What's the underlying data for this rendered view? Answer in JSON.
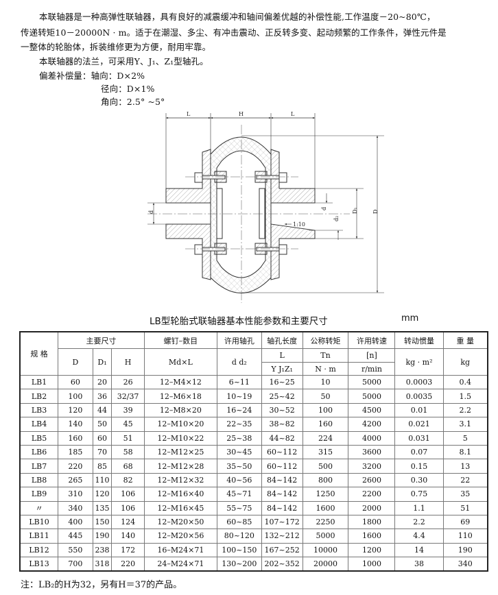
{
  "intro": {
    "lines": [
      "本联轴器是一种高弹性联轴器，具有良好的减震缓冲和轴间偏差优越的补偿性能,工作温度－20~80℃，",
      "传递转矩10－20000N · m。适于在潮湿、多尘、有冲击震动、正反转多变、起动频繁的工作条件，弹性元件是",
      "一整体的轮胎体，拆装维修更为方便，耐用牢靠。",
      "本联轴器的法兰，可采用Y、J₁、Z₁型轴孔。",
      "偏差补偿量：轴向：D×2%",
      "径向：D×1%",
      "角向：2.5° ~5°"
    ]
  },
  "drawing": {
    "labels": {
      "L_left": "L",
      "H": "H",
      "L_right": "L",
      "d_left": "d",
      "d_right": "d",
      "d2": "d₂",
      "D1": "D₁",
      "D": "D",
      "taper": "1:10"
    }
  },
  "table": {
    "title": "LB型轮胎式联轴器基本性能参数和主要尺寸",
    "unit": "mm",
    "headers": {
      "spec": "规  格",
      "main_dims": "主要尺寸",
      "D": "D",
      "D1": "D₁",
      "H": "H",
      "screw": "螺钉–数目",
      "screw_unit": "Md×L",
      "bore": "许用轴孔",
      "bore_sub": "d  d₂",
      "bore_len": "轴孔长度",
      "bore_len_sym": "L",
      "bore_len_types": "Y J₁Z₁",
      "torque": "公称转矩",
      "torque_sym": "Tn",
      "torque_unit": "N · m",
      "speed": "许用转速",
      "speed_sym": "[n]",
      "speed_unit": "r/min",
      "inertia": "转动惯量",
      "inertia_unit": "kg · m²",
      "weight": "重  量",
      "weight_unit": "kg"
    },
    "rows": [
      [
        "LB1",
        "60",
        "20",
        "26",
        "12–M4×12",
        "6~11",
        "16~25",
        "10",
        "5000",
        "0.0003",
        "0.4"
      ],
      [
        "LB2",
        "100",
        "36",
        "32/37",
        "12–M6×18",
        "10~19",
        "25~42",
        "50",
        "5000",
        "0.0035",
        "1.5"
      ],
      [
        "LB3",
        "120",
        "44",
        "39",
        "12–M8×20",
        "16~24",
        "30~52",
        "100",
        "4500",
        "0.01",
        "2.2"
      ],
      [
        "LB4",
        "140",
        "50",
        "45",
        "12–M10×20",
        "22~35",
        "38~82",
        "160",
        "4200",
        "0.021",
        "3.1"
      ],
      [
        "LB5",
        "160",
        "60",
        "51",
        "12–M10×22",
        "25~38",
        "44~82",
        "224",
        "4000",
        "0.031",
        "5"
      ],
      [
        "LB6",
        "185",
        "70",
        "58",
        "12–M12×25",
        "30~45",
        "60~112",
        "315",
        "3600",
        "0.07",
        "8.1"
      ],
      [
        "LB7",
        "220",
        "85",
        "68",
        "12–M12×28",
        "35~50",
        "60~112",
        "500",
        "3200",
        "0.15",
        "13"
      ],
      [
        "LB8",
        "265",
        "110",
        "82",
        "12–M12×32",
        "40~56",
        "84~142",
        "800",
        "2600",
        "0.30",
        "22"
      ],
      [
        "LB9",
        "310",
        "120",
        "106",
        "12–M16×40",
        "45~71",
        "84~142",
        "1250",
        "2200",
        "0.75",
        "35"
      ],
      [
        "〃",
        "340",
        "135",
        "106",
        "12–M16×45",
        "55~75",
        "84~142",
        "1600",
        "2000",
        "1.1",
        "51"
      ],
      [
        "LB10",
        "400",
        "150",
        "124",
        "12–M20×50",
        "60~85",
        "107~172",
        "2250",
        "1800",
        "2.2",
        "69"
      ],
      [
        "LB11",
        "445",
        "190",
        "140",
        "12–M20×56",
        "80~120",
        "132~212",
        "5000",
        "1600",
        "4.4",
        "110"
      ],
      [
        "LB12",
        "550",
        "238",
        "172",
        "16–M24×71",
        "100~150",
        "167~252",
        "10000",
        "1200",
        "14",
        "190"
      ],
      [
        "LB13",
        "700",
        "318",
        "220",
        "24–M24×71",
        "130~200",
        "202~352",
        "20000",
        "1000",
        "38",
        "340"
      ]
    ]
  },
  "note": "注：LB₂的H为32，另有H＝37的产品。"
}
